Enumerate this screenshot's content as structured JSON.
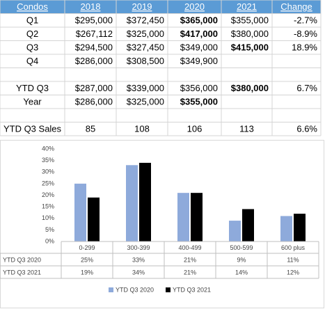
{
  "table": {
    "header": [
      "Condos",
      "2018",
      "2019",
      "2020",
      "2021",
      "Change"
    ],
    "rows": [
      [
        "Q1",
        "$295,000",
        "$372,450",
        {
          "text": "$365,000",
          "bold": true
        },
        "$355,000",
        "-2.7%"
      ],
      [
        "Q2",
        "$267,112",
        "$325,000",
        {
          "text": "$417,000",
          "bold": true
        },
        "$380,000",
        "-8.9%"
      ],
      [
        "Q3",
        "$294,500",
        "$327,450",
        "$349,000",
        {
          "text": "$415,000",
          "bold": true
        },
        "18.9%"
      ],
      [
        "Q4",
        "$286,000",
        "$308,500",
        "$349,900",
        null,
        null
      ],
      [
        "YTD Q3",
        "$287,000",
        "$339,000",
        "$356,000",
        {
          "text": "$380,000",
          "bold": true
        },
        "6.7%"
      ],
      [
        "Year",
        "$286,000",
        "$325,000",
        {
          "text": "$355,000",
          "bold": true
        },
        null,
        null
      ],
      [
        "YTD Q3 Sales",
        "85",
        "108",
        "106",
        "113",
        "6.6%"
      ]
    ]
  },
  "chart_data": {
    "type": "bar",
    "categories": [
      "0-299",
      "300-399",
      "400-499",
      "500-599",
      "600 plus"
    ],
    "series": [
      {
        "name": "YTD Q3 2020",
        "color": "#8eaadb",
        "values": [
          25,
          33,
          21,
          9,
          11
        ],
        "value_labels": [
          "25%",
          "33%",
          "21%",
          "9%",
          "11%"
        ]
      },
      {
        "name": "YTD Q3 2021",
        "color": "#000000",
        "values": [
          19,
          34,
          21,
          14,
          12
        ],
        "value_labels": [
          "19%",
          "34%",
          "21%",
          "14%",
          "12%"
        ]
      }
    ],
    "ylim": [
      0,
      40
    ],
    "yticks": [
      {
        "value": 0,
        "label": "0%"
      },
      {
        "value": 5,
        "label": "5%"
      },
      {
        "value": 10,
        "label": "10%"
      },
      {
        "value": 15,
        "label": "15%"
      },
      {
        "value": 20,
        "label": "20%"
      },
      {
        "value": 25,
        "label": "25%"
      },
      {
        "value": 30,
        "label": "30%"
      },
      {
        "value": 35,
        "label": "35%"
      },
      {
        "value": 40,
        "label": "40%"
      }
    ],
    "grid": false,
    "legend": "bottom"
  }
}
